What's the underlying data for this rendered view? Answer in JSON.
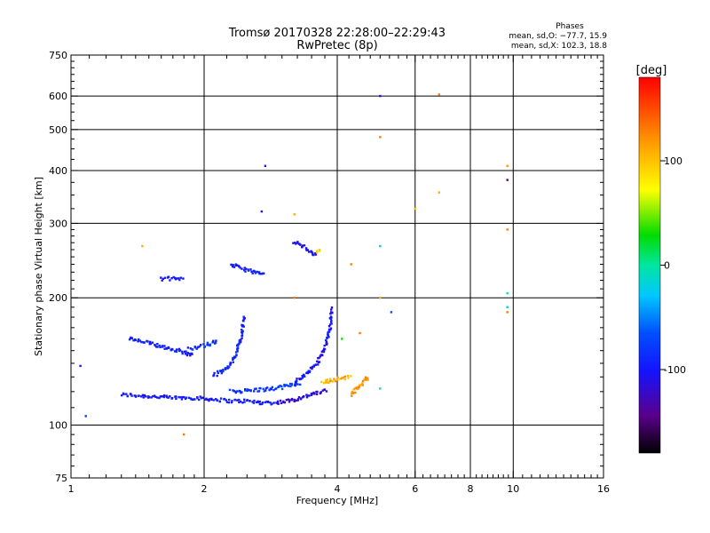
{
  "chart_data": {
    "type": "scatter",
    "title": "Tromsø 20170328 22:28:00–22:29:43",
    "subtitle": "RwPretec (8p)",
    "xlabel": "Frequency [MHz]",
    "ylabel": "Stationary phase Virtual Height [km]",
    "x_scale": "log",
    "y_scale": "log",
    "xlim": [
      1,
      16
    ],
    "ylim": [
      75,
      750
    ],
    "x_ticks": [
      1,
      2,
      4,
      6,
      8,
      10,
      16
    ],
    "x_tick_labels": [
      "1",
      "2",
      "4",
      "6",
      "8",
      "10",
      "16"
    ],
    "x_grid": [
      2,
      4,
      6,
      8,
      10
    ],
    "y_ticks": [
      75,
      100,
      200,
      300,
      400,
      500,
      600,
      750
    ],
    "y_tick_labels": [
      "75",
      "100",
      "200",
      "300",
      "400",
      "500",
      "600",
      "750"
    ],
    "y_grid": [
      100,
      200,
      300,
      400,
      500,
      600
    ],
    "legend": {
      "title": "Phases",
      "lines": [
        "mean, sd,O: −77.7, 15.9",
        "mean, sd,X: 102.3, 18.8"
      ]
    },
    "colorbar": {
      "label": "[deg]",
      "range": [
        -180,
        180
      ],
      "ticks": [
        100,
        0,
        -100
      ],
      "tick_labels": [
        "100",
        "0",
        "-100"
      ]
    },
    "trace_segments": [
      {
        "f": [
          1.3,
          1.5,
          1.7,
          1.9,
          2.1,
          2.3,
          2.5,
          2.7,
          2.9
        ],
        "h": [
          118,
          117,
          116,
          116,
          115,
          114,
          114,
          113,
          113
        ],
        "phase": -100
      },
      {
        "f": [
          2.9,
          3.1,
          3.3,
          3.5,
          3.8
        ],
        "h": [
          113,
          114,
          116,
          118,
          121
        ],
        "phase": -115
      },
      {
        "f": [
          2.3,
          2.6,
          2.9,
          3.1,
          3.3
        ],
        "h": [
          120,
          121,
          122,
          124,
          126
        ],
        "phase": -80
      },
      {
        "f": [
          3.2,
          3.4,
          3.6,
          3.75,
          3.85,
          3.9
        ],
        "h": [
          126,
          132,
          140,
          152,
          168,
          190
        ],
        "phase": -100
      },
      {
        "f": [
          2.1,
          2.25,
          2.35,
          2.42,
          2.47
        ],
        "h": [
          131,
          136,
          145,
          160,
          182
        ],
        "phase": -90
      },
      {
        "f": [
          1.35,
          1.55,
          1.75,
          1.9
        ],
        "h": [
          160,
          155,
          150,
          146
        ],
        "phase": -95
      },
      {
        "f": [
          1.85,
          2.0,
          2.15
        ],
        "h": [
          152,
          154,
          158
        ],
        "phase": -85
      },
      {
        "f": [
          2.3,
          2.45,
          2.6,
          2.75
        ],
        "h": [
          240,
          234,
          230,
          226
        ],
        "phase": -95
      },
      {
        "f": [
          1.6,
          1.7,
          1.8
        ],
        "h": [
          222,
          222,
          221
        ],
        "phase": -100
      },
      {
        "f": [
          3.2,
          3.4,
          3.6
        ],
        "h": [
          272,
          262,
          252
        ],
        "phase": -105
      },
      {
        "f": [
          3.7,
          3.8,
          3.9,
          4.1,
          4.3
        ],
        "h": [
          126,
          127,
          128,
          129,
          130
        ],
        "phase": 110
      },
      {
        "f": [
          4.3,
          4.5,
          4.7
        ],
        "h": [
          118,
          124,
          130
        ],
        "phase": 120
      },
      {
        "f": [
          3.6,
          3.65
        ],
        "h": [
          255,
          260
        ],
        "phase": 100
      }
    ],
    "isolated_points": [
      {
        "f": 1.05,
        "h": 138,
        "phase": -100
      },
      {
        "f": 1.08,
        "h": 105,
        "phase": -80
      },
      {
        "f": 1.45,
        "h": 265,
        "phase": 110
      },
      {
        "f": 1.8,
        "h": 95,
        "phase": 130
      },
      {
        "f": 2.75,
        "h": 410,
        "phase": -100
      },
      {
        "f": 2.7,
        "h": 320,
        "phase": -110
      },
      {
        "f": 3.2,
        "h": 200,
        "phase": 130
      },
      {
        "f": 3.2,
        "h": 315,
        "phase": 110
      },
      {
        "f": 4.3,
        "h": 240,
        "phase": 130
      },
      {
        "f": 5.0,
        "h": 600,
        "phase": -100
      },
      {
        "f": 5.0,
        "h": 480,
        "phase": 130
      },
      {
        "f": 5.0,
        "h": 265,
        "phase": -30
      },
      {
        "f": 5.0,
        "h": 200,
        "phase": 110
      },
      {
        "f": 5.3,
        "h": 185,
        "phase": -70
      },
      {
        "f": 6.8,
        "h": 605,
        "phase": 130
      },
      {
        "f": 6.8,
        "h": 355,
        "phase": 110
      },
      {
        "f": 6.0,
        "h": 325,
        "phase": 100
      },
      {
        "f": 9.7,
        "h": 410,
        "phase": 120
      },
      {
        "f": 9.7,
        "h": 380,
        "phase": -150
      },
      {
        "f": 9.7,
        "h": 290,
        "phase": 130
      },
      {
        "f": 9.7,
        "h": 205,
        "phase": -10
      },
      {
        "f": 9.7,
        "h": 190,
        "phase": -20
      },
      {
        "f": 9.7,
        "h": 185,
        "phase": 130
      },
      {
        "f": 4.1,
        "h": 160,
        "phase": 30
      },
      {
        "f": 4.5,
        "h": 165,
        "phase": 130
      },
      {
        "f": 5.0,
        "h": 122,
        "phase": -10
      }
    ]
  }
}
